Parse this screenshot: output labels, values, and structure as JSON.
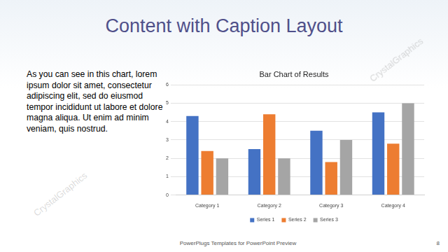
{
  "slide": {
    "title": "Content with Caption Layout",
    "caption": "As you can see in this chart, lorem ipsum dolor sit amet, consectetur adipiscing elit, sed do eiusmod tempor incididunt ut labore et dolore magna aliqua. Ut enim ad minim veniam, quis nostrud.",
    "footer": "PowerPlugs Templates for PowerPoint Preview",
    "page": "8",
    "watermark": "CrystalGraphics"
  },
  "chart_data": {
    "type": "bar",
    "title": "Bar Chart of Results",
    "categories": [
      "Category 1",
      "Category 2",
      "Category 3",
      "Category 4"
    ],
    "series": [
      {
        "name": "Series 1",
        "color": "#4472c4",
        "values": [
          4.3,
          2.5,
          3.5,
          4.5
        ]
      },
      {
        "name": "Series 2",
        "color": "#ed7d31",
        "values": [
          2.4,
          4.4,
          1.8,
          2.8
        ]
      },
      {
        "name": "Series 3",
        "color": "#a5a5a5",
        "values": [
          2,
          2,
          3,
          5
        ]
      }
    ],
    "ylim": [
      0,
      6
    ],
    "yticks": [
      0,
      1,
      2,
      3,
      4,
      5,
      6
    ],
    "grid": true,
    "legend": "bottom"
  }
}
